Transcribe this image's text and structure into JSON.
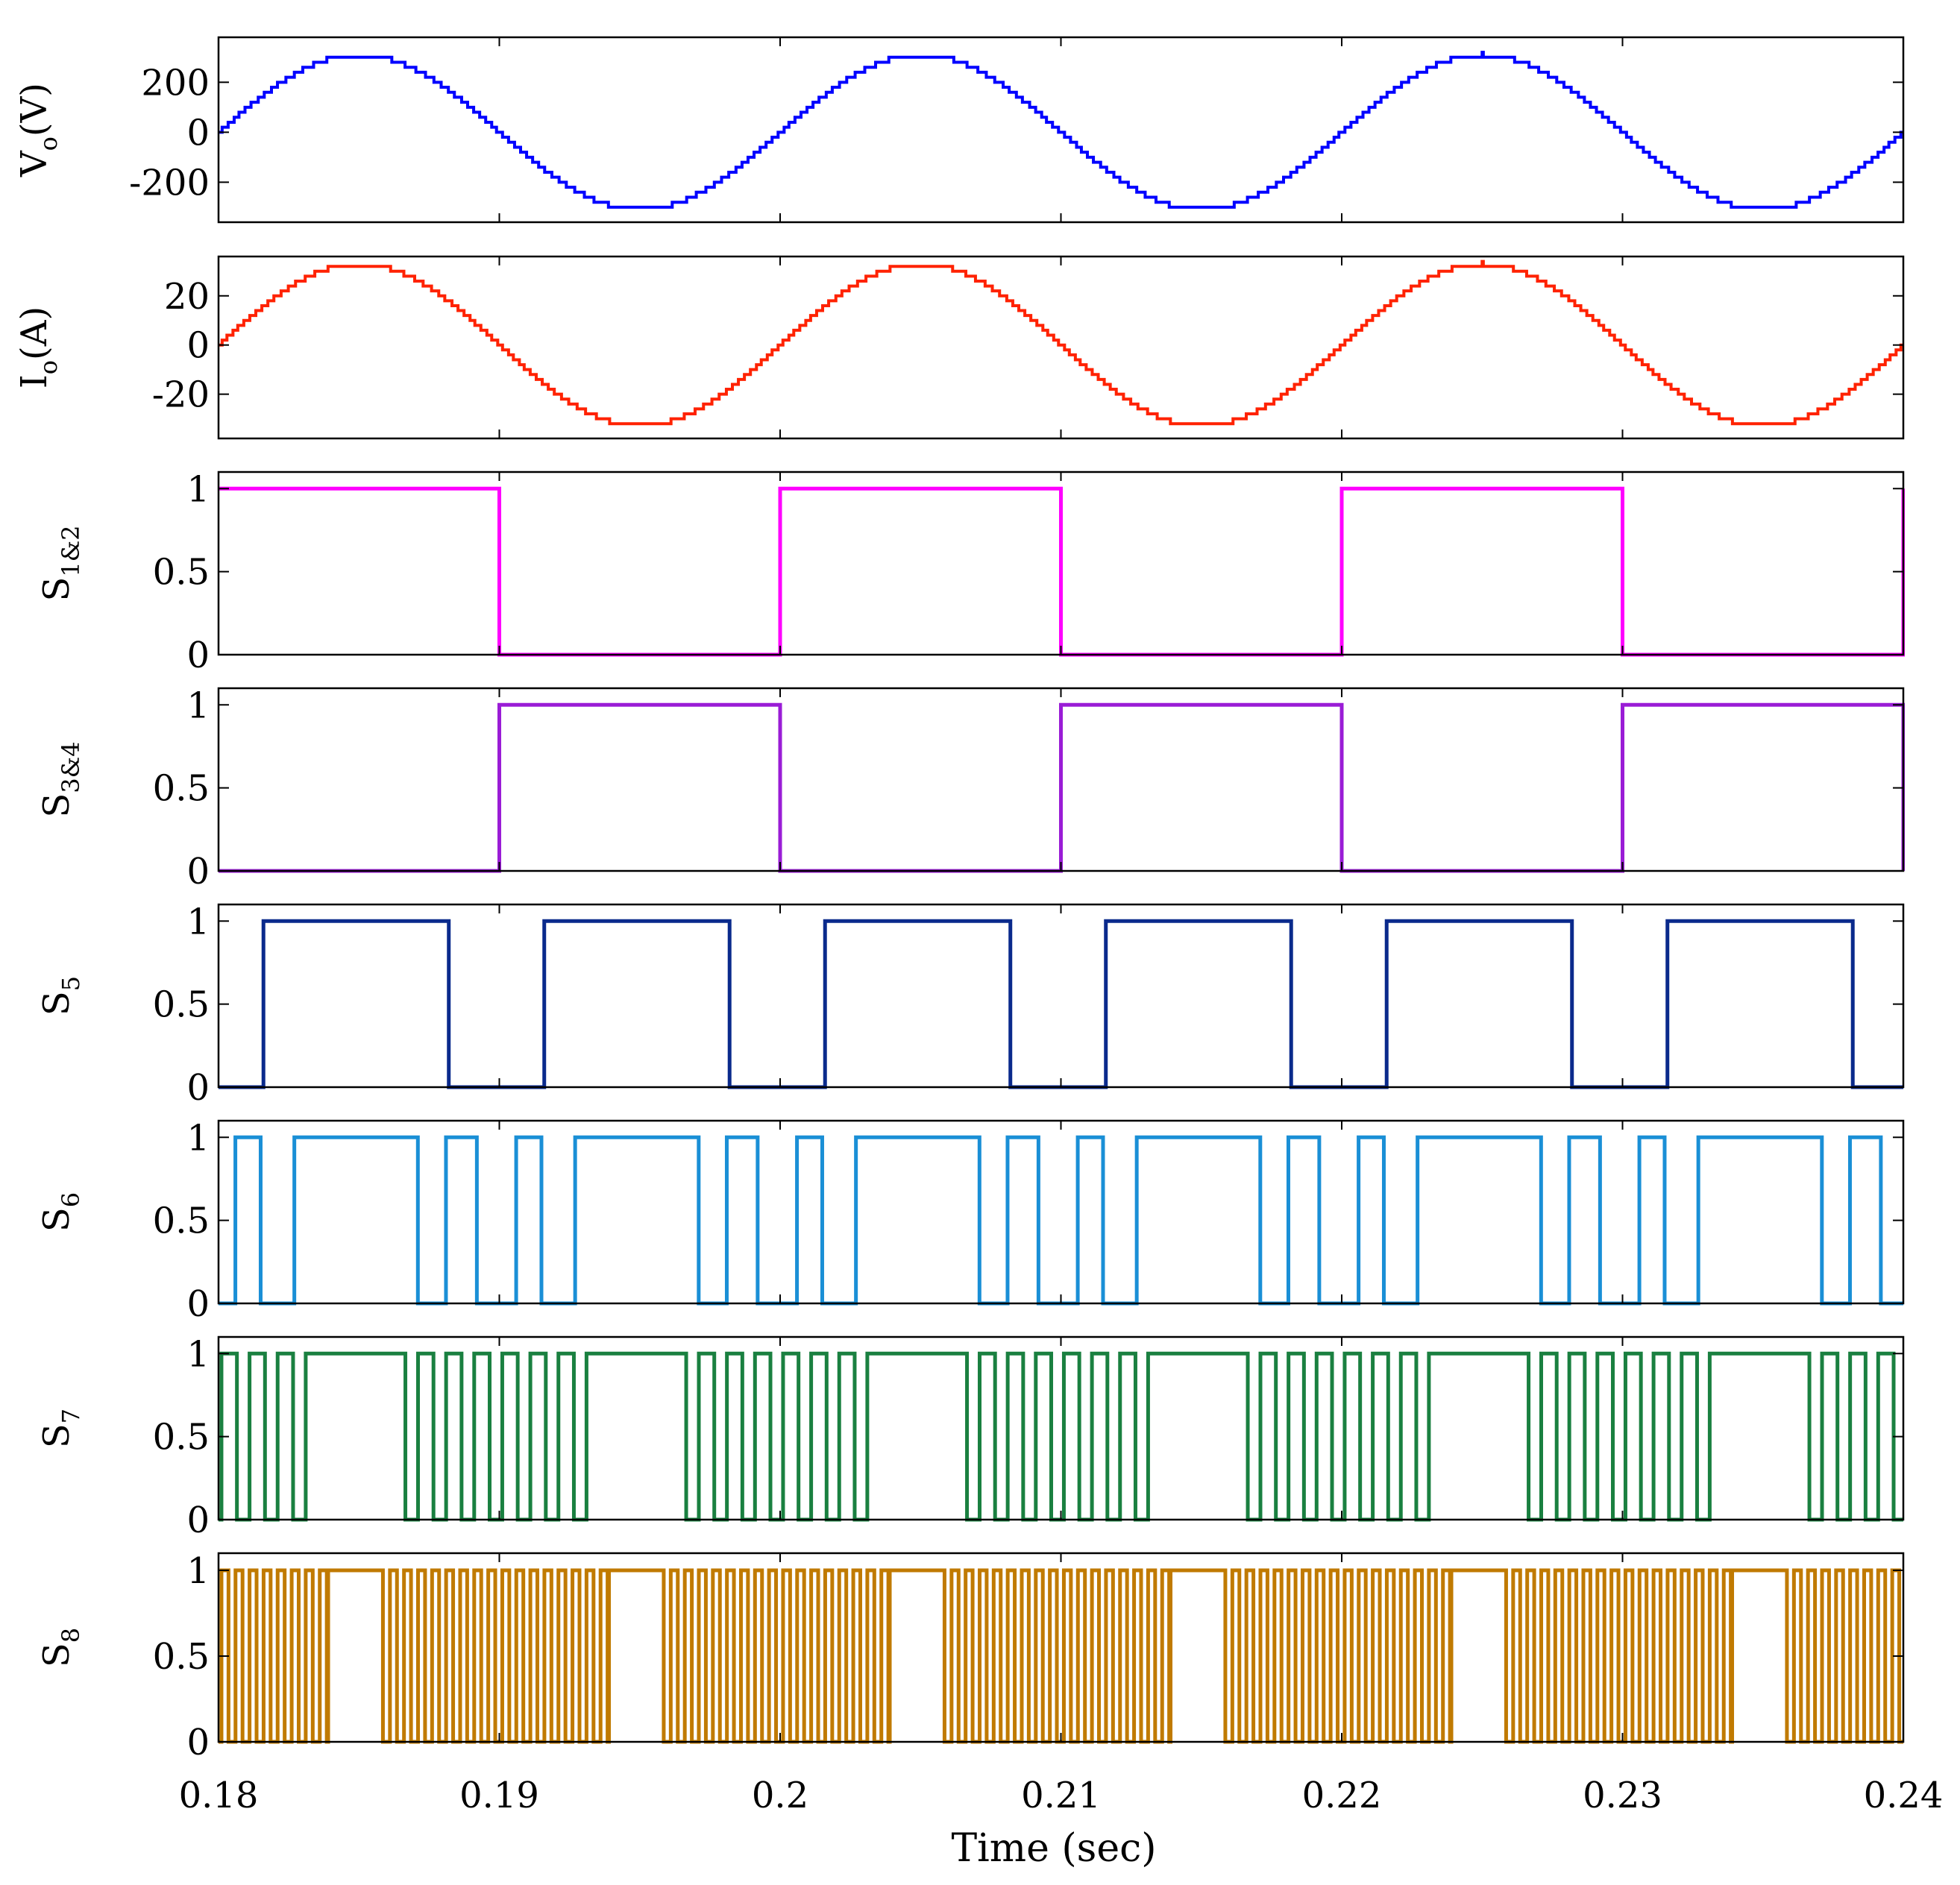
{
  "figure": {
    "xlabel": "Time (sec)",
    "xlim": [
      0.18,
      0.24
    ],
    "x_ticks": [
      0.18,
      0.19,
      0.2,
      0.21,
      0.22,
      0.23,
      0.24
    ],
    "x_tick_labels": [
      "0.18",
      "0.19",
      "0.2",
      "0.21",
      "0.22",
      "0.23",
      "0.24"
    ]
  },
  "chart_data": [
    {
      "type": "line",
      "name": "Vo",
      "ylabel_main": "V",
      "ylabel_sub": "o",
      "ylabel_rest": "(V)",
      "ylim": [
        -360,
        380
      ],
      "y_ticks": [
        200,
        0,
        -200
      ],
      "y_tick_labels": [
        "200",
        "0",
        "-200"
      ],
      "color": "#0000ff",
      "signal": "sine",
      "amplitude": 310,
      "frequency_hz": 50,
      "phase_origin": 0.18,
      "quantization_step": 20,
      "series": [
        {
          "name": "Vo",
          "x": [
            0.18,
            0.185,
            0.19,
            0.195,
            0.2,
            0.205,
            0.21,
            0.215,
            0.22,
            0.225,
            0.23,
            0.235,
            0.24
          ],
          "values": [
            0,
            310,
            0,
            -310,
            0,
            310,
            0,
            -310,
            0,
            310,
            0,
            -310,
            0
          ]
        }
      ]
    },
    {
      "type": "line",
      "name": "Io",
      "ylabel_main": "I",
      "ylabel_sub": "o",
      "ylabel_rest": "(A)",
      "ylim": [
        -38,
        36
      ],
      "y_ticks": [
        20,
        0,
        -20
      ],
      "y_tick_labels": [
        "20",
        "0",
        "-20"
      ],
      "color": "#ff2200",
      "signal": "sine",
      "amplitude": 33,
      "frequency_hz": 50,
      "phase_origin": 0.18,
      "quantization_step": 2,
      "series": [
        {
          "name": "Io",
          "x": [
            0.18,
            0.185,
            0.19,
            0.195,
            0.2,
            0.205,
            0.21,
            0.215,
            0.22,
            0.225,
            0.23,
            0.235,
            0.24
          ],
          "values": [
            0,
            33,
            0,
            -33,
            0,
            33,
            0,
            -33,
            0,
            33,
            0,
            -33,
            0
          ]
        }
      ]
    },
    {
      "type": "line",
      "name": "S1&2",
      "ylabel_main": "S",
      "ylabel_sub": "1&2",
      "ylabel_rest": "",
      "ylim": [
        0,
        1.1
      ],
      "y_ticks": [
        1,
        0.5,
        0
      ],
      "y_tick_labels": [
        "1",
        "0.5",
        "0"
      ],
      "color": "#ff00ff",
      "signal": "steps",
      "initial": 1,
      "transitions": [
        0.19,
        0.2,
        0.21,
        0.22,
        0.23,
        0.24
      ]
    },
    {
      "type": "line",
      "name": "S3&4",
      "ylabel_main": "S",
      "ylabel_sub": "3&4",
      "ylabel_rest": "",
      "ylim": [
        0,
        1.1
      ],
      "y_ticks": [
        1,
        0.5,
        0
      ],
      "y_tick_labels": [
        "1",
        "0.5",
        "0"
      ],
      "color": "#9a1cd6",
      "signal": "steps",
      "initial": 0,
      "transitions": [
        0.19,
        0.2,
        0.21,
        0.22,
        0.23,
        0.24
      ]
    },
    {
      "type": "line",
      "name": "S5",
      "ylabel_main": "S",
      "ylabel_sub": "5",
      "ylabel_rest": "",
      "ylim": [
        0,
        1.1
      ],
      "y_ticks": [
        1,
        0.5,
        0
      ],
      "y_tick_labels": [
        "1",
        "0.5",
        "0"
      ],
      "color": "#0a2a8c",
      "signal": "steps",
      "initial": 0,
      "transitions": [
        0.1816,
        0.1882,
        0.1916,
        0.1982,
        0.2016,
        0.2082,
        0.2116,
        0.2182,
        0.2216,
        0.2282,
        0.2316,
        0.2382
      ]
    },
    {
      "type": "line",
      "name": "S6",
      "ylabel_main": "S",
      "ylabel_sub": "6",
      "ylabel_rest": "",
      "ylim": [
        0,
        1.1
      ],
      "y_ticks": [
        1,
        0.5,
        0
      ],
      "y_tick_labels": [
        "1",
        "0.5",
        "0"
      ],
      "color": "#1a8fd6",
      "signal": "steps",
      "initial": 0,
      "transitions": [
        0.1806,
        0.1815,
        0.1827,
        0.1871,
        0.1881,
        0.1892,
        0.1906,
        0.1915,
        0.1927,
        0.1971,
        0.1981,
        0.1992,
        0.2006,
        0.2015,
        0.2027,
        0.2071,
        0.2081,
        0.2092,
        0.2106,
        0.2115,
        0.2127,
        0.2171,
        0.2181,
        0.2192,
        0.2206,
        0.2215,
        0.2227,
        0.2271,
        0.2281,
        0.2292,
        0.2306,
        0.2315,
        0.2327,
        0.2371,
        0.2381,
        0.2392
      ]
    },
    {
      "type": "line",
      "name": "S7",
      "ylabel_main": "S",
      "ylabel_sub": "7",
      "ylabel_rest": "",
      "ylim": [
        0,
        1.1
      ],
      "y_ticks": [
        1,
        0.5,
        0
      ],
      "y_tick_labels": [
        "1",
        "0.5",
        "0"
      ],
      "color": "#1a8040",
      "signal": "pwm",
      "period": 0.001,
      "duty": 0.55,
      "start": 0.1801,
      "window_period": 0.01,
      "window_start": 0.1835,
      "window_length": 0.0028,
      "window_level": 1
    },
    {
      "type": "line",
      "name": "S8",
      "ylabel_main": "S",
      "ylabel_sub": "8",
      "ylabel_rest": "",
      "ylim": [
        0,
        1.1
      ],
      "y_ticks": [
        1,
        0.5,
        0
      ],
      "y_tick_labels": [
        "1",
        "0.5",
        "0"
      ],
      "color": "#c07a00",
      "signal": "pwm",
      "period": 0.0005,
      "duty": 0.5,
      "start": 0.1801,
      "window_period": 0.01,
      "window_start": 0.1839,
      "window_length": 0.0017,
      "window_level": 1
    }
  ]
}
